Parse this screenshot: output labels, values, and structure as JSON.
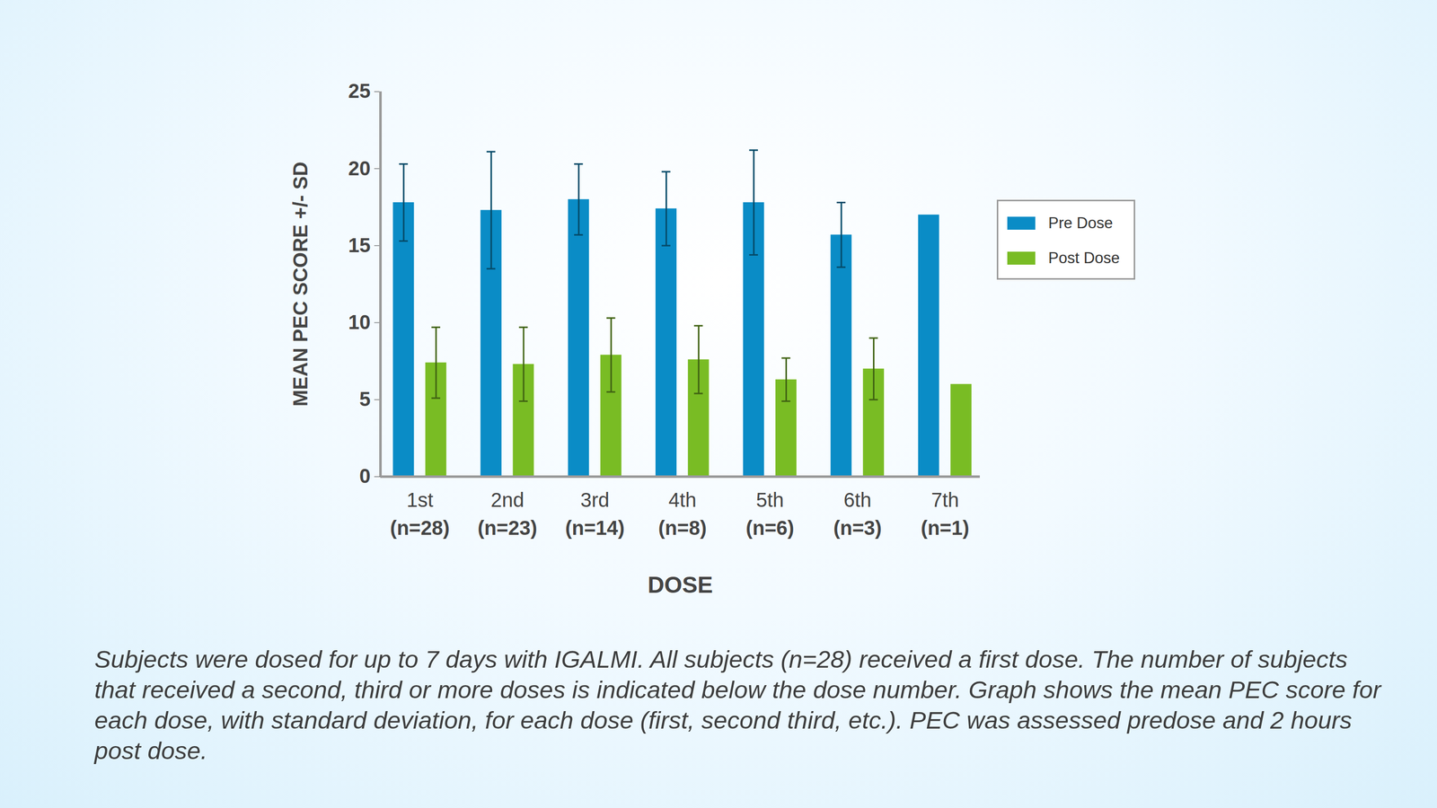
{
  "chart_data": {
    "type": "bar",
    "y_label": "MEAN PEC SCORE +/- SD",
    "x_label": "DOSE",
    "caption": "Subjects were dosed for up to 7 days with IGALMI. All subjects (n=28) received a first dose. The number of subjects that received a second, third or more doses is indicated below the dose number. Graph shows the mean PEC score for each dose, with standard deviation, for each dose (first, second third, etc.). PEC was assessed predose and 2 hours post dose.",
    "categories": [
      "1st",
      "2nd",
      "3rd",
      "4th",
      "5th",
      "6th",
      "7th"
    ],
    "n_labels": [
      "(n=28)",
      "(n=23)",
      "(n=14)",
      "(n=8)",
      "(n=6)",
      "(n=3)",
      "(n=1)"
    ],
    "series": [
      {
        "name": "Pre Dose",
        "color": "#0a8cc6",
        "values": [
          17.8,
          17.3,
          18.0,
          17.4,
          17.8,
          15.7,
          17.0
        ],
        "sd": [
          2.5,
          3.8,
          2.3,
          2.4,
          3.4,
          2.1,
          null
        ]
      },
      {
        "name": "Post Dose",
        "color": "#79bc24",
        "values": [
          7.4,
          7.3,
          7.9,
          7.6,
          6.3,
          7.0,
          6.0
        ],
        "sd": [
          2.3,
          2.4,
          2.4,
          2.2,
          1.4,
          2.0,
          null
        ]
      }
    ],
    "ylim": [
      0,
      25
    ],
    "yticks": [
      0,
      5,
      10,
      15,
      20,
      25
    ],
    "grid": false,
    "legend": "right"
  }
}
